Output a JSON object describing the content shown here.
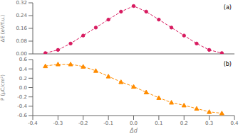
{
  "chart_data": [
    {
      "type": "line",
      "title": "(a)",
      "ylabel": "ΔE (eV/f.u.)",
      "x": [
        -0.35,
        -0.3,
        -0.25,
        -0.2,
        -0.15,
        -0.1,
        -0.05,
        0.0,
        0.05,
        0.1,
        0.15,
        0.2,
        0.25,
        0.3,
        0.35
      ],
      "values": [
        0.005,
        0.025,
        0.065,
        0.115,
        0.165,
        0.215,
        0.265,
        0.3,
        0.265,
        0.215,
        0.165,
        0.115,
        0.065,
        0.025,
        0.005
      ],
      "color": "#D81B60",
      "marker": "circle",
      "line_style": "dashed",
      "xlim": [
        -0.4,
        0.4
      ],
      "xticks": [
        -0.4,
        -0.3,
        -0.2,
        -0.1,
        0.0,
        0.1,
        0.2,
        0.3,
        0.4
      ],
      "ylim": [
        0.0,
        0.32
      ],
      "yticks": [
        {
          "value": 0.0,
          "label": "0.00"
        },
        0.08,
        0.16,
        0.24,
        0.32
      ],
      "tick_labels": "y",
      "grid": false
    },
    {
      "type": "line",
      "title": "(b)",
      "ylabel": "P (μC/cm²)",
      "xlabel": "Δd",
      "x": [
        -0.35,
        -0.3,
        -0.25,
        -0.2,
        -0.15,
        -0.1,
        -0.05,
        0.0,
        0.05,
        0.1,
        0.15,
        0.2,
        0.25,
        0.3,
        0.35
      ],
      "values": [
        0.46,
        0.5,
        0.5,
        0.45,
        0.36,
        0.24,
        0.12,
        0.02,
        -0.1,
        -0.22,
        -0.32,
        -0.38,
        -0.45,
        -0.52,
        -0.55
      ],
      "color": "#FF8C00",
      "marker": "triangle",
      "line_style": "dashed",
      "xlim": [
        -0.4,
        0.4
      ],
      "xticks": [
        -0.4,
        -0.3,
        -0.2,
        -0.1,
        {
          "value": 0.0,
          "label": "0.0"
        },
        0.1,
        0.2,
        0.3,
        0.4
      ],
      "ylim": [
        -0.6,
        0.6
      ],
      "yticks": [
        -0.6,
        -0.4,
        -0.2,
        {
          "value": 0.0,
          "label": "0.0"
        },
        0.2,
        0.4,
        0.6
      ],
      "grid": false
    }
  ]
}
